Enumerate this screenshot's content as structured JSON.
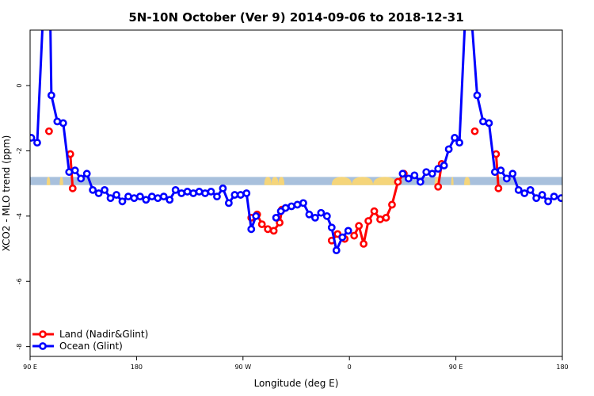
{
  "chart_data": {
    "type": "line",
    "title": "5N-10N October (Ver 9)   2014-09-06 to 2018-12-31",
    "xlabel": "Longitude (deg E)",
    "ylabel": "XCO2 - MLO trend (ppm)",
    "xlim": [
      90,
      540
    ],
    "ylim": [
      -8.3,
      1.7
    ],
    "x_ticks": [
      {
        "value": 90,
        "label": "90 E"
      },
      {
        "value": 180,
        "label": "180"
      },
      {
        "value": 270,
        "label": "90 W"
      },
      {
        "value": 360,
        "label": "0"
      },
      {
        "value": 450,
        "label": "90 E"
      },
      {
        "value": 540,
        "label": "180"
      }
    ],
    "y_ticks": [
      {
        "value": 0,
        "label": "0"
      },
      {
        "value": -2,
        "label": "-2"
      },
      {
        "value": -4,
        "label": "-4"
      },
      {
        "value": -6,
        "label": "-6"
      },
      {
        "value": -8,
        "label": "-8"
      }
    ],
    "land_strip": {
      "y_top": -2.8,
      "y_bottom": -3.05,
      "ocean_color": "#a8c0dc",
      "land_color": "#f5d57a"
    },
    "legend": {
      "position": "bottom-left"
    },
    "series": [
      {
        "name": "Land (Nadir&Glint)",
        "color": "#ff0000",
        "segments": [
          [
            [
              106,
              -1.4
            ]
          ],
          [
            [
              124,
              -2.1
            ],
            [
              126,
              -3.15
            ]
          ],
          [
            [
              277,
              -4.05
            ],
            [
              282,
              -3.95
            ],
            [
              286,
              -4.25
            ],
            [
              291,
              -4.4
            ],
            [
              296,
              -4.45
            ],
            [
              301,
              -4.2
            ],
            [
              303,
              -3.8
            ]
          ],
          [
            [
              345,
              -4.75
            ],
            [
              350,
              -4.55
            ],
            [
              356,
              -4.7
            ]
          ],
          [
            [
              364,
              -4.6
            ],
            [
              368,
              -4.3
            ],
            [
              372,
              -4.85
            ],
            [
              376,
              -4.15
            ],
            [
              381,
              -3.85
            ],
            [
              386,
              -4.1
            ],
            [
              391,
              -4.05
            ],
            [
              396,
              -3.65
            ],
            [
              401,
              -2.95
            ],
            [
              406,
              -2.7
            ]
          ],
          [
            [
              435,
              -3.1
            ],
            [
              438,
              -2.4
            ]
          ],
          [
            [
              466,
              -1.4
            ]
          ],
          [
            [
              484,
              -2.1
            ],
            [
              486,
              -3.15
            ]
          ]
        ]
      },
      {
        "name": "Ocean (Glint)",
        "color": "#0000ff",
        "segments": [
          [
            [
              91,
              -1.6
            ],
            [
              96,
              -1.75
            ],
            [
              101,
              2.2
            ],
            [
              107,
              2.2
            ],
            [
              108,
              -0.3
            ],
            [
              113,
              -1.1
            ],
            [
              118,
              -1.15
            ],
            [
              123,
              -2.65
            ],
            [
              128,
              -2.6
            ],
            [
              133,
              -2.85
            ],
            [
              138,
              -2.7
            ],
            [
              143,
              -3.2
            ],
            [
              148,
              -3.3
            ],
            [
              153,
              -3.2
            ],
            [
              158,
              -3.45
            ],
            [
              163,
              -3.35
            ],
            [
              168,
              -3.55
            ],
            [
              173,
              -3.4
            ],
            [
              178,
              -3.45
            ],
            [
              183,
              -3.4
            ],
            [
              188,
              -3.5
            ],
            [
              193,
              -3.4
            ],
            [
              198,
              -3.45
            ],
            [
              203,
              -3.4
            ],
            [
              208,
              -3.5
            ],
            [
              213,
              -3.2
            ],
            [
              218,
              -3.3
            ],
            [
              223,
              -3.25
            ],
            [
              228,
              -3.3
            ],
            [
              233,
              -3.25
            ],
            [
              238,
              -3.3
            ],
            [
              243,
              -3.25
            ],
            [
              248,
              -3.4
            ],
            [
              253,
              -3.15
            ],
            [
              258,
              -3.6
            ],
            [
              263,
              -3.35
            ],
            [
              268,
              -3.35
            ],
            [
              273,
              -3.3
            ],
            [
              277,
              -4.4
            ],
            [
              281,
              -4.0
            ]
          ],
          [
            [
              298,
              -4.05
            ],
            [
              302,
              -3.85
            ],
            [
              306,
              -3.75
            ],
            [
              311,
              -3.7
            ],
            [
              316,
              -3.65
            ],
            [
              321,
              -3.6
            ],
            [
              326,
              -3.95
            ],
            [
              331,
              -4.05
            ],
            [
              336,
              -3.9
            ],
            [
              341,
              -4.0
            ],
            [
              345,
              -4.35
            ],
            [
              349,
              -5.05
            ],
            [
              354,
              -4.65
            ],
            [
              359,
              -4.45
            ]
          ],
          [
            [
              405,
              -2.7
            ],
            [
              410,
              -2.85
            ],
            [
              415,
              -2.75
            ],
            [
              420,
              -2.95
            ],
            [
              425,
              -2.65
            ],
            [
              430,
              -2.7
            ],
            [
              435,
              -2.55
            ],
            [
              440,
              -2.45
            ],
            [
              444,
              -1.95
            ],
            [
              449,
              -1.6
            ],
            [
              453,
              -1.75
            ],
            [
              458,
              2.2
            ],
            [
              463,
              2.2
            ],
            [
              468,
              -0.3
            ],
            [
              473,
              -1.1
            ],
            [
              478,
              -1.15
            ],
            [
              483,
              -2.65
            ],
            [
              488,
              -2.6
            ],
            [
              493,
              -2.85
            ],
            [
              498,
              -2.7
            ],
            [
              503,
              -3.2
            ],
            [
              508,
              -3.3
            ],
            [
              513,
              -3.2
            ],
            [
              518,
              -3.45
            ],
            [
              523,
              -3.35
            ],
            [
              528,
              -3.55
            ],
            [
              533,
              -3.4
            ],
            [
              539,
              -3.45
            ]
          ]
        ]
      }
    ]
  }
}
